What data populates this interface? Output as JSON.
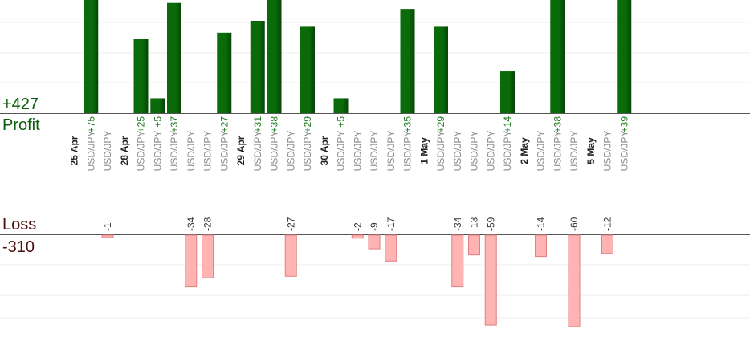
{
  "summary": {
    "profit_total": "+427",
    "profit_label": "Profit",
    "loss_label": "Loss",
    "loss_total": "-310"
  },
  "colors": {
    "profit_bar": "#0b6b0b",
    "profit_bar_dark": "#054505",
    "profit_text": "#1a7a1a",
    "loss_bar": "#ffb3b3",
    "loss_bar_edge": "#e08080",
    "loss_text": "#333333",
    "date_text": "#222222",
    "pair_text": "#8a8a8a",
    "grid": "#eeeeee",
    "baseline": "#555555"
  },
  "chart_data": {
    "type": "bar",
    "title": "",
    "y_profit_range": [
      0,
      38
    ],
    "y_loss_range": [
      -60,
      0
    ],
    "columns": [
      {
        "kind": "date",
        "text": "25 Apr"
      },
      {
        "kind": "trade",
        "pair": "USD/JPY",
        "profit": 75,
        "label": "+75"
      },
      {
        "kind": "trade",
        "pair": "USD/JPY",
        "loss": -1,
        "label": "-1"
      },
      {
        "kind": "date",
        "text": "28 Apr"
      },
      {
        "kind": "trade",
        "pair": "USD/JPY",
        "profit": 25,
        "label": "+25"
      },
      {
        "kind": "trade",
        "pair": "USD/JPY",
        "profit": 5,
        "label": "+5"
      },
      {
        "kind": "trade",
        "pair": "USD/JPY",
        "profit": 37,
        "label": "+37"
      },
      {
        "kind": "trade",
        "pair": "USD/JPY",
        "loss": -34,
        "label": "-34"
      },
      {
        "kind": "trade",
        "pair": "USD/JPY",
        "loss": -28,
        "label": "-28"
      },
      {
        "kind": "trade",
        "pair": "USD/JPY",
        "profit": 27,
        "label": "+27"
      },
      {
        "kind": "date",
        "text": "29 Apr"
      },
      {
        "kind": "trade",
        "pair": "USD/JPY",
        "profit": 31,
        "label": "+31"
      },
      {
        "kind": "trade",
        "pair": "USD/JPY",
        "profit": 38,
        "label": "+38"
      },
      {
        "kind": "trade",
        "pair": "USD/JPY",
        "loss": -27,
        "label": "-27"
      },
      {
        "kind": "trade",
        "pair": "USD/JPY",
        "profit": 29,
        "label": "+29"
      },
      {
        "kind": "date",
        "text": "30 Apr"
      },
      {
        "kind": "trade",
        "pair": "USD/JPY",
        "profit": 5,
        "label": "+5"
      },
      {
        "kind": "trade",
        "pair": "USD/JPY",
        "loss": -2,
        "label": "-2"
      },
      {
        "kind": "trade",
        "pair": "USD/JPY",
        "loss": -9,
        "label": "-9"
      },
      {
        "kind": "trade",
        "pair": "USD/JPY",
        "loss": -17,
        "label": "-17"
      },
      {
        "kind": "trade",
        "pair": "USD/JPY",
        "profit": 35,
        "label": "+35"
      },
      {
        "kind": "date",
        "text": "1 May"
      },
      {
        "kind": "trade",
        "pair": "USD/JPY",
        "profit": 29,
        "label": "+29"
      },
      {
        "kind": "trade",
        "pair": "USD/JPY",
        "loss": -34,
        "label": "-34"
      },
      {
        "kind": "trade",
        "pair": "USD/JPY",
        "loss": -13,
        "label": "-13"
      },
      {
        "kind": "trade",
        "pair": "USD/JPY",
        "loss": -59,
        "label": "-59"
      },
      {
        "kind": "trade",
        "pair": "USD/JPY",
        "profit": 14,
        "label": "+14"
      },
      {
        "kind": "date",
        "text": "2 May"
      },
      {
        "kind": "trade",
        "pair": "USD/JPY",
        "loss": -14,
        "label": "-14"
      },
      {
        "kind": "trade",
        "pair": "USD/JPY",
        "profit": 38,
        "label": "+38"
      },
      {
        "kind": "trade",
        "pair": "USD/JPY",
        "loss": -60,
        "label": "-60"
      },
      {
        "kind": "date",
        "text": "5 May"
      },
      {
        "kind": "trade",
        "pair": "USD/JPY",
        "loss": -12,
        "label": "-12"
      },
      {
        "kind": "trade",
        "pair": "USD/JPY",
        "profit": 39,
        "label": "+39"
      }
    ]
  }
}
